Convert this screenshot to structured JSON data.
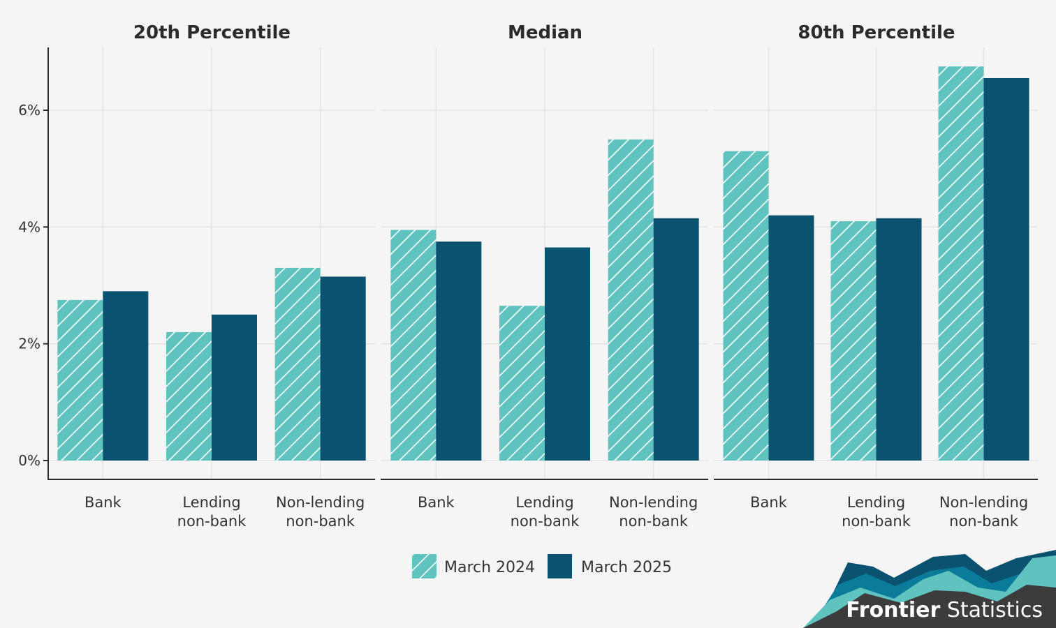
{
  "chart_data": {
    "type": "bar",
    "ylim": [
      0,
      7
    ],
    "y_ticks": [
      0,
      2,
      4,
      6
    ],
    "y_tick_labels": [
      "0%",
      "2%",
      "4%",
      "6%"
    ],
    "grid": true,
    "legend_position": "bottom",
    "categories": [
      [
        "Bank"
      ],
      [
        "Lending",
        "non-bank"
      ],
      [
        "Non-lending",
        "non-bank"
      ]
    ],
    "series_meta": [
      {
        "name": "March 2024",
        "color": "#5fc3bf",
        "pattern": "hatched"
      },
      {
        "name": "March 2025",
        "color": "#0b5170",
        "pattern": "solid"
      }
    ],
    "panels": [
      {
        "title": "20th Percentile",
        "values": [
          [
            2.75,
            2.2,
            3.3
          ],
          [
            2.9,
            2.5,
            3.15
          ]
        ]
      },
      {
        "title": "Median",
        "values": [
          [
            3.95,
            2.65,
            5.5
          ],
          [
            3.75,
            3.65,
            4.15
          ]
        ]
      },
      {
        "title": "80th Percentile",
        "values": [
          [
            5.3,
            4.1,
            6.75
          ],
          [
            4.2,
            4.15,
            6.55
          ]
        ]
      }
    ]
  },
  "logo": {
    "brand_bold": "Frontier",
    "brand_regular": " Statistics",
    "colors": {
      "dark": "#3c3c3c",
      "teal": "#5fc3bf",
      "blue": "#0a7c9a",
      "navy": "#0b5170"
    }
  }
}
